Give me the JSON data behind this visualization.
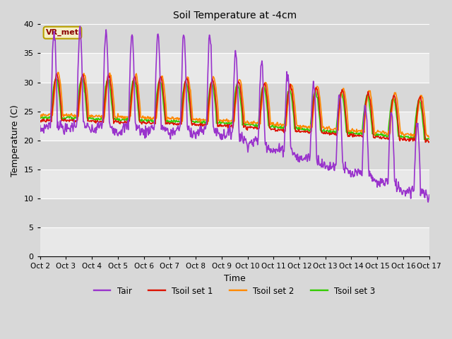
{
  "title": "Soil Temperature at -4cm",
  "xlabel": "Time",
  "ylabel": "Temperature (C)",
  "ylim": [
    0,
    40
  ],
  "yticks": [
    0,
    5,
    10,
    15,
    20,
    25,
    30,
    35,
    40
  ],
  "annotation_text": "VR_met",
  "colors": {
    "Tair": "#9933cc",
    "Tsoil set 1": "#dd1100",
    "Tsoil set 2": "#ff8800",
    "Tsoil set 3": "#33cc00"
  },
  "legend_labels": [
    "Tair",
    "Tsoil set 1",
    "Tsoil set 2",
    "Tsoil set 3"
  ],
  "background_color": "#d8d8d8",
  "plot_bg_color": "#d8d8d8",
  "band_colors": [
    "#d8d8d8",
    "#e8e8e8"
  ],
  "linewidth": 1.2,
  "n_days": 15,
  "pts_per_day": 48
}
